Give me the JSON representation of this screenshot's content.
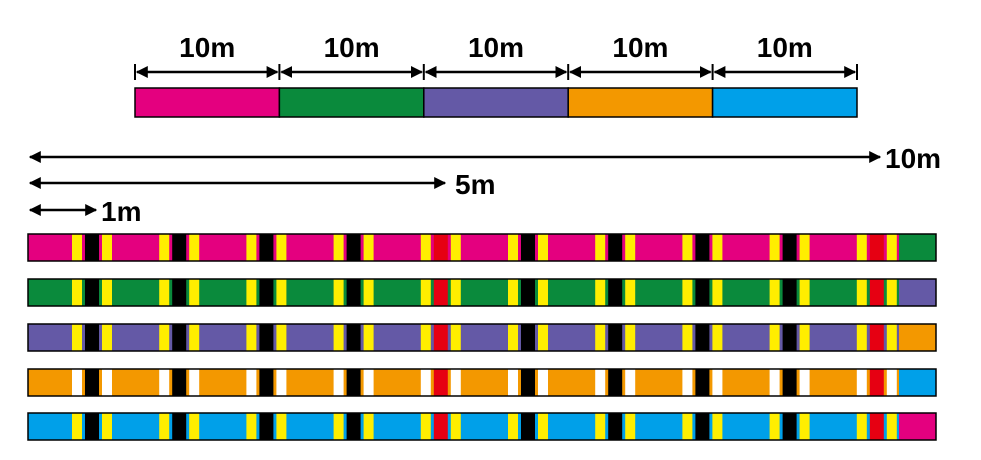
{
  "top_scale": {
    "labels": [
      "10m",
      "10m",
      "10m",
      "10m",
      "10m"
    ]
  },
  "length_scale": {
    "labels": [
      "10m",
      "5m",
      "1m"
    ]
  }
}
